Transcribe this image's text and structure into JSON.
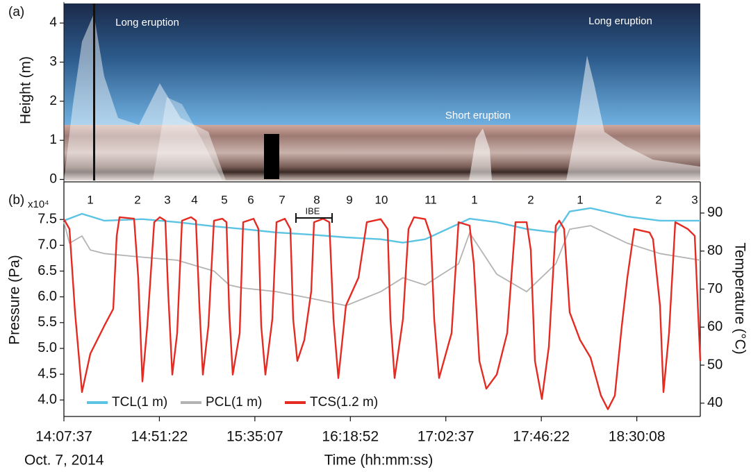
{
  "chart_data": [
    {
      "type": "image",
      "panel_label": "(a)",
      "ylabel": "Height (m)",
      "ylim": [
        0,
        4.5
      ],
      "yticks": [
        0,
        1,
        2,
        3,
        4
      ],
      "annotations": [
        "Long eruption",
        "Short eruption",
        "Long eruption"
      ]
    },
    {
      "type": "line",
      "panel_label": "(b)",
      "xlabel": "Time (hh:mm:ss)",
      "date": "Oct. 7, 2014",
      "ylabel": "Pressure (Pa)",
      "y_multiplier": "x10⁴",
      "y2label": "Temperature (°C)",
      "xlim": [
        50857,
        68353
      ],
      "xticks": [
        {
          "value": 50857,
          "label": "14:07:37"
        },
        {
          "value": 53482,
          "label": "14:51:22"
        },
        {
          "value": 56107,
          "label": "15:35:07"
        },
        {
          "value": 58732,
          "label": "16:18:52"
        },
        {
          "value": 61357,
          "label": "17:02:37"
        },
        {
          "value": 63982,
          "label": "17:46:22"
        },
        {
          "value": 66608,
          "label": "18:30:08"
        }
      ],
      "ylim": [
        3.68,
        8.23
      ],
      "yticks": [
        {
          "value": 4,
          "label": "4.0"
        },
        4.5,
        {
          "value": 5,
          "label": "5.0"
        },
        5.5,
        {
          "value": 6,
          "label": "6.0"
        },
        6.5,
        {
          "value": 7,
          "label": "7.0"
        },
        7.5
      ],
      "y2lim": [
        36.5,
        98.2
      ],
      "y2ticks": [
        40,
        50,
        60,
        70,
        80,
        90
      ],
      "cycle_labels": [
        "1",
        "2",
        "3",
        "4",
        "5",
        "6",
        "7",
        "8",
        "9",
        "10",
        "11",
        "1",
        "2",
        "1",
        "2",
        "3"
      ],
      "interval_label": "IBE",
      "series": [
        {
          "name": "TCL(1 m)",
          "color": "#5bc3e3",
          "axis": "y2",
          "x": [
            50857,
            51354,
            51965,
            53015,
            53970,
            54983,
            55785,
            56702,
            57657,
            58612,
            59567,
            60178,
            60789,
            62011,
            62756,
            63578,
            64380,
            64762,
            65335,
            66347,
            67245,
            68353
          ],
          "values": [
            88.0,
            89.8,
            88.0,
            88.4,
            87.6,
            86.5,
            85.8,
            84.9,
            84.3,
            83.6,
            83.1,
            82.2,
            83.1,
            88.5,
            87.6,
            85.8,
            84.9,
            90.4,
            91.3,
            89.1,
            88.0,
            88.0
          ]
        },
        {
          "name": "PCL(1 m)",
          "color": "#b3b3b3",
          "axis": "y",
          "x": [
            50857,
            51010,
            51354,
            51583,
            51965,
            53015,
            53970,
            54983,
            55403,
            55785,
            56702,
            57657,
            58612,
            59567,
            60178,
            60789,
            61706,
            62011,
            62756,
            63578,
            64380,
            64762,
            65335,
            66347,
            67245,
            68353
          ],
          "values": [
            7.45,
            7.04,
            7.18,
            6.91,
            6.84,
            6.77,
            6.71,
            6.5,
            6.23,
            6.17,
            6.1,
            5.97,
            5.83,
            6.1,
            6.37,
            6.23,
            6.64,
            7.24,
            6.44,
            6.1,
            6.64,
            7.31,
            7.38,
            7.04,
            6.84,
            6.71
          ]
        },
        {
          "name": "TCS(1.2 m)",
          "color": "#e52a22",
          "axis": "y2",
          "x": [
            50857,
            51010,
            51163,
            51354,
            51583,
            51965,
            52213,
            52309,
            52385,
            52786,
            52901,
            53015,
            53149,
            53340,
            53493,
            53646,
            53722,
            53837,
            53970,
            54104,
            54352,
            54486,
            54582,
            54677,
            54830,
            54983,
            55212,
            55326,
            55403,
            55498,
            55689,
            55785,
            56071,
            56205,
            56281,
            56396,
            56587,
            56702,
            56931,
            57084,
            57160,
            57275,
            57466,
            57657,
            57733,
            57981,
            58153,
            58268,
            58402,
            58612,
            58955,
            59185,
            59567,
            59758,
            59834,
            59949,
            60178,
            60331,
            60483,
            60789,
            60942,
            61037,
            61171,
            61515,
            61706,
            62011,
            62126,
            62279,
            62470,
            62756,
            63043,
            63272,
            63578,
            63692,
            63807,
            63998,
            64189,
            64380,
            64475,
            64609,
            64762,
            65048,
            65335,
            65621,
            65812,
            66003,
            66194,
            66347,
            66538,
            66958,
            67054,
            67245,
            67340,
            67493,
            67665,
            68009,
            68200,
            68353
          ],
          "values": [
            88.4,
            85.8,
            63.9,
            42.9,
            53.0,
            60.3,
            64.8,
            84.0,
            88.9,
            88.5,
            73.0,
            45.7,
            60.3,
            87.6,
            88.9,
            88.0,
            69.4,
            47.5,
            58.4,
            88.0,
            88.9,
            88.0,
            65.7,
            47.5,
            60.3,
            88.0,
            88.5,
            87.6,
            63.9,
            47.5,
            58.4,
            87.6,
            88.5,
            85.8,
            60.3,
            47.5,
            62.1,
            87.6,
            88.5,
            85.8,
            62.1,
            51.1,
            56.6,
            69.4,
            87.6,
            88.5,
            87.6,
            62.1,
            46.6,
            65.7,
            73.0,
            87.6,
            88.4,
            85.8,
            62.1,
            46.6,
            62.1,
            85.8,
            88.9,
            88.4,
            84.0,
            62.1,
            46.6,
            58.4,
            87.6,
            86.7,
            76.7,
            51.1,
            43.8,
            47.5,
            58.4,
            87.6,
            87.6,
            80.3,
            51.1,
            41.1,
            54.8,
            86.7,
            88.0,
            85.8,
            63.9,
            56.6,
            52.0,
            42.0,
            38.4,
            42.0,
            60.3,
            73.0,
            85.8,
            84.9,
            83.1,
            65.7,
            42.9,
            58.4,
            87.6,
            85.8,
            84.0,
            51.1
          ]
        }
      ]
    }
  ]
}
